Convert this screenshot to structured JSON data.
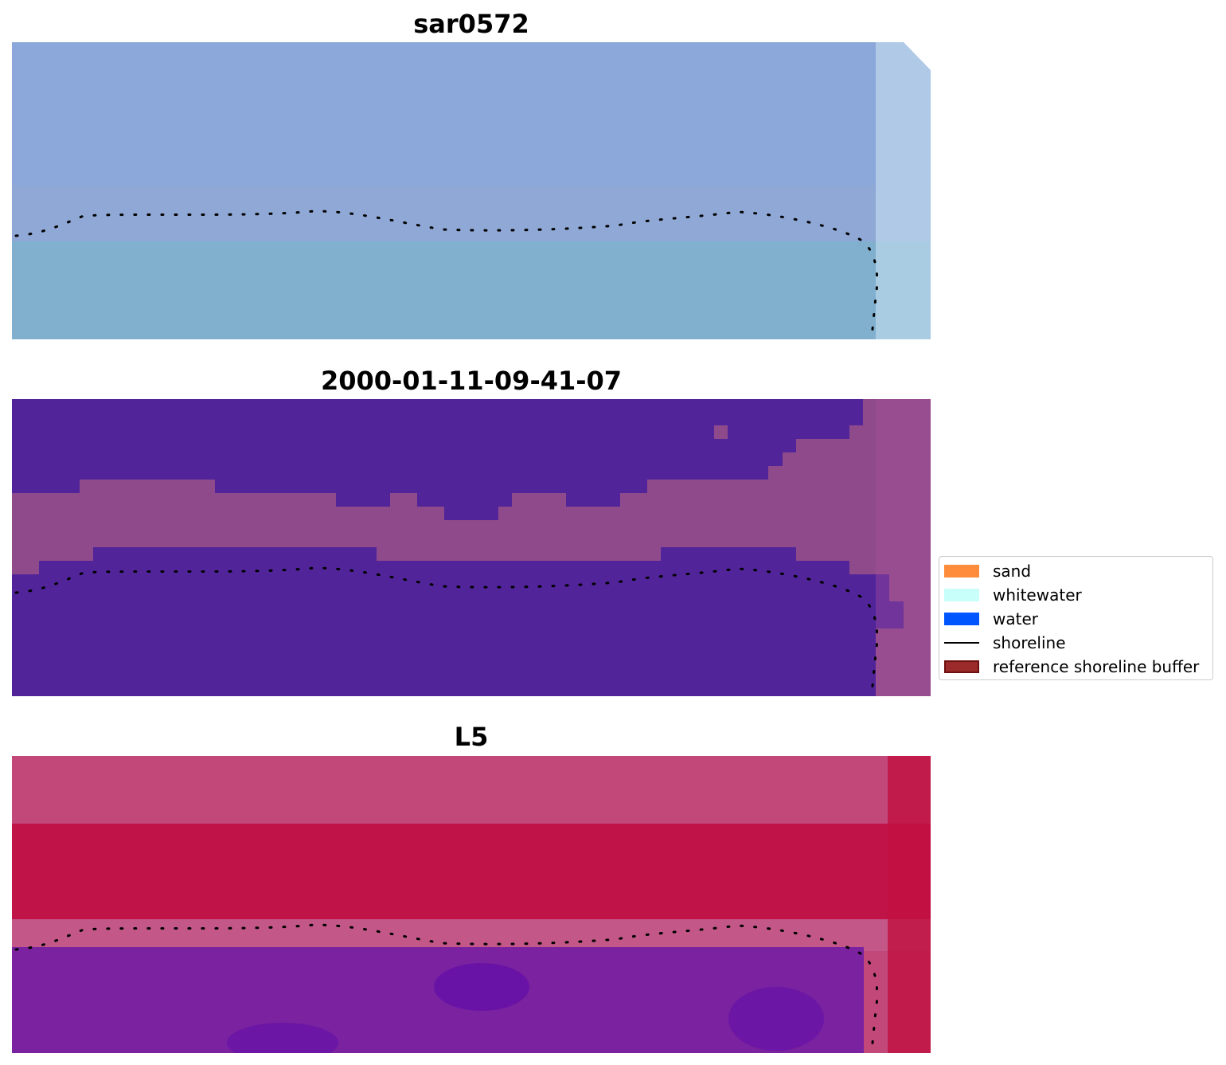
{
  "panels": [
    {
      "id": "rgb",
      "title": "sar0572",
      "colors": {
        "base": "#8fa8d6",
        "upper": "#8aa6dc",
        "lower": "#7bb3cc",
        "edge": "#c7dff0"
      }
    },
    {
      "id": "classified",
      "title": "2000-01-11-09-41-07",
      "colors": {
        "dark": "#52249a",
        "band": "#8f4a8c",
        "right": "#a8549a"
      }
    },
    {
      "id": "index",
      "title": "L5",
      "colors": {
        "top": "#c2487a",
        "red": "#bf0a40",
        "band": "#c3608e",
        "purple": "#7a22a0",
        "deep": "#5b0aa8",
        "right": "#c01040"
      }
    }
  ],
  "legend": {
    "items": [
      {
        "label": "sand",
        "color": "#ff8c3a",
        "kind": "patch"
      },
      {
        "label": "whitewater",
        "color": "#c8fffb",
        "kind": "patch"
      },
      {
        "label": "water",
        "color": "#0055ff",
        "kind": "patch"
      },
      {
        "label": "shoreline",
        "color": "#000000",
        "kind": "line"
      },
      {
        "label": "reference shoreline buffer",
        "color": "#9b2a2a",
        "kind": "patch-edge"
      }
    ]
  }
}
